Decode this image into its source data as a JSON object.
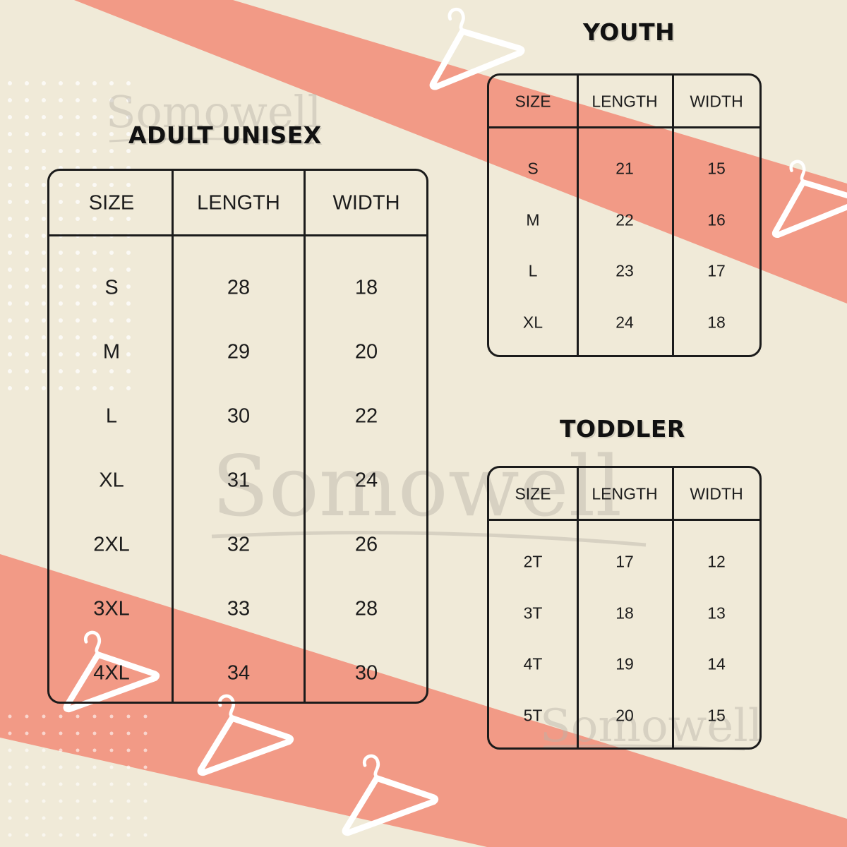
{
  "watermark": "Somowell",
  "colors": {
    "background": "#f0ead8",
    "stripe": "#f29a86",
    "ink": "#1b1b1b",
    "hanger": "#ffffff"
  },
  "adult": {
    "title": "ADULT UNISEX",
    "headers": [
      "SIZE",
      "LENGTH",
      "WIDTH"
    ],
    "rows": [
      [
        "S",
        "28",
        "18"
      ],
      [
        "M",
        "29",
        "20"
      ],
      [
        "L",
        "30",
        "22"
      ],
      [
        "XL",
        "31",
        "24"
      ],
      [
        "2XL",
        "32",
        "26"
      ],
      [
        "3XL",
        "33",
        "28"
      ],
      [
        "4XL",
        "34",
        "30"
      ]
    ]
  },
  "youth": {
    "title": "YOUTH",
    "headers": [
      "SIZE",
      "LENGTH",
      "WIDTH"
    ],
    "rows": [
      [
        "S",
        "21",
        "15"
      ],
      [
        "M",
        "22",
        "16"
      ],
      [
        "L",
        "23",
        "17"
      ],
      [
        "XL",
        "24",
        "18"
      ]
    ]
  },
  "toddler": {
    "title": "TODDLER",
    "headers": [
      "SIZE",
      "LENGTH",
      "WIDTH"
    ],
    "rows": [
      [
        "2T",
        "17",
        "12"
      ],
      [
        "3T",
        "18",
        "13"
      ],
      [
        "4T",
        "19",
        "14"
      ],
      [
        "5T",
        "20",
        "15"
      ]
    ]
  }
}
